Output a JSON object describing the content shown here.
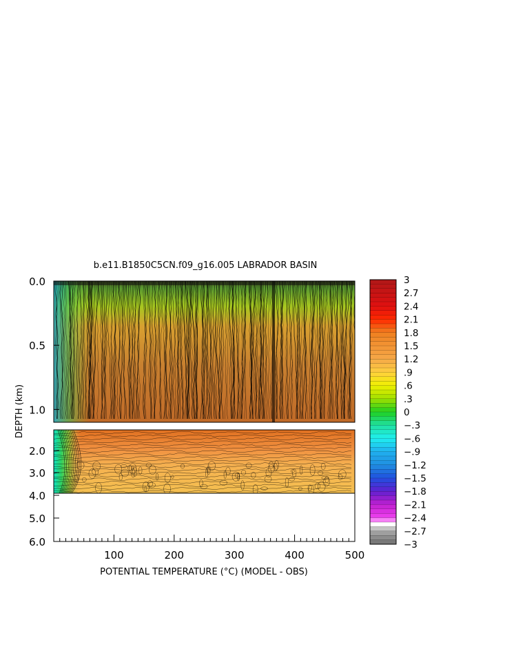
{
  "chart_data": {
    "type": "heatmap",
    "title": "b.e11.B1850C5CN.f09_g16.005 LABRADOR BASIN",
    "xlabel": "POTENTIAL TEMPERATURE (°C) (MODEL - OBS)",
    "ylabel": "DEPTH (km)",
    "x_range": [
      0,
      500
    ],
    "x_ticks": [
      {
        "value": 100,
        "label": "100"
      },
      {
        "value": 200,
        "label": "200"
      },
      {
        "value": 300,
        "label": "300"
      },
      {
        "value": 400,
        "label": "400"
      },
      {
        "value": 500,
        "label": "500"
      }
    ],
    "upper_panel": {
      "depth_range_km": [
        0.0,
        1.1
      ],
      "y_ticks": [
        {
          "value": 0.0,
          "label": "0.0"
        },
        {
          "value": 0.5,
          "label": "0.5"
        },
        {
          "value": 1.0,
          "label": "1.0"
        }
      ]
    },
    "lower_panel": {
      "depth_range_km": [
        1.1,
        6.0
      ],
      "data_bottom_km": 3.9,
      "y_ticks": [
        {
          "value": 2.0,
          "label": "2.0"
        },
        {
          "value": 3.0,
          "label": "3.0"
        },
        {
          "value": 4.0,
          "label": "4.0"
        },
        {
          "value": 5.0,
          "label": "5.0"
        },
        {
          "value": 6.0,
          "label": "6.0"
        }
      ]
    },
    "colorbar": {
      "range": [
        -3,
        3
      ],
      "ticks": [
        {
          "value": 3,
          "label": "3"
        },
        {
          "value": 2.7,
          "label": "2.7"
        },
        {
          "value": 2.4,
          "label": "2.4"
        },
        {
          "value": 2.1,
          "label": "2.1"
        },
        {
          "value": 1.8,
          "label": "1.8"
        },
        {
          "value": 1.5,
          "label": "1.5"
        },
        {
          "value": 1.2,
          "label": "1.2"
        },
        {
          "value": 0.9,
          "label": ".9"
        },
        {
          "value": 0.6,
          "label": ".6"
        },
        {
          "value": 0.3,
          "label": ".3"
        },
        {
          "value": 0,
          "label": "0"
        },
        {
          "value": -0.3,
          "label": "−.3"
        },
        {
          "value": -0.6,
          "label": "−.6"
        },
        {
          "value": -0.9,
          "label": "−.9"
        },
        {
          "value": -1.2,
          "label": "−1.2"
        },
        {
          "value": -1.5,
          "label": "−1.5"
        },
        {
          "value": -1.8,
          "label": "−1.8"
        },
        {
          "value": -2.1,
          "label": "−2.1"
        },
        {
          "value": -2.4,
          "label": "−2.4"
        },
        {
          "value": -2.7,
          "label": "−2.7"
        },
        {
          "value": -3,
          "label": "−3"
        }
      ],
      "stops": [
        {
          "value": 3.0,
          "color": "#b01818"
        },
        {
          "value": 2.4,
          "color": "#e01010"
        },
        {
          "value": 2.1,
          "color": "#ff2a00"
        },
        {
          "value": 1.8,
          "color": "#f08020"
        },
        {
          "value": 1.2,
          "color": "#f5a848"
        },
        {
          "value": 0.9,
          "color": "#ffd040"
        },
        {
          "value": 0.6,
          "color": "#f0f000"
        },
        {
          "value": 0.3,
          "color": "#a0e000"
        },
        {
          "value": 0.0,
          "color": "#20d020"
        },
        {
          "value": -0.3,
          "color": "#20e0a0"
        },
        {
          "value": -0.6,
          "color": "#20f0f0"
        },
        {
          "value": -0.9,
          "color": "#20b0f0"
        },
        {
          "value": -1.2,
          "color": "#2090e0"
        },
        {
          "value": -1.5,
          "color": "#2050e0"
        },
        {
          "value": -1.8,
          "color": "#6020d0"
        },
        {
          "value": -2.1,
          "color": "#c020d0"
        },
        {
          "value": -2.4,
          "color": "#f040f0"
        },
        {
          "value": -2.55,
          "color": "#ffffff"
        },
        {
          "value": -2.7,
          "color": "#a8a8a8"
        },
        {
          "value": -3.0,
          "color": "#707070"
        }
      ]
    }
  }
}
